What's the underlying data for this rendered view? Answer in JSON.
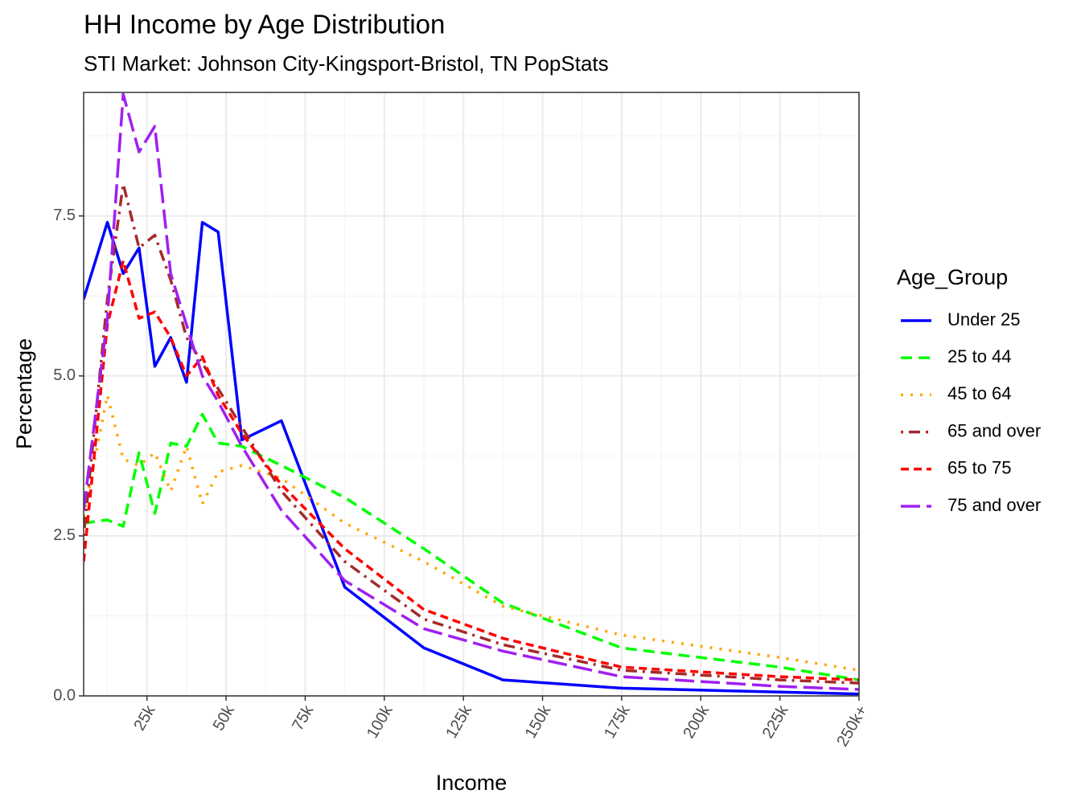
{
  "chart_data": {
    "type": "line",
    "title": "HH Income by Age Distribution",
    "subtitle": "STI Market: Johnson City-Kingsport-Bristol, TN PopStats",
    "x_label": "Income",
    "y_label": "Percentage",
    "legend_title": "Age_Group",
    "x": [
      5,
      12.5,
      17.5,
      22.5,
      27.5,
      32.5,
      37.5,
      42.5,
      47.5,
      55,
      67.5,
      87.5,
      112.5,
      137.5,
      175,
      225,
      250
    ],
    "series": [
      {
        "name": "Under 25",
        "color": "#0000ff",
        "linetype": "solid",
        "values": [
          6.2,
          7.4,
          6.6,
          7.0,
          5.15,
          5.6,
          4.9,
          7.4,
          7.25,
          4.0,
          4.3,
          1.7,
          0.75,
          0.25,
          0.12,
          0.06,
          0.03
        ]
      },
      {
        "name": "25 to 44",
        "color": "#00ff00",
        "linetype": "dashed",
        "values": [
          2.7,
          2.75,
          2.65,
          3.8,
          2.85,
          3.95,
          3.9,
          4.4,
          3.95,
          3.9,
          3.6,
          3.1,
          2.3,
          1.45,
          0.75,
          0.45,
          0.25
        ]
      },
      {
        "name": "45 to 64",
        "color": "#ffa500",
        "linetype": "dotted",
        "values": [
          2.8,
          4.7,
          3.7,
          3.6,
          3.8,
          3.2,
          3.9,
          3.0,
          3.5,
          3.6,
          3.4,
          2.7,
          2.1,
          1.4,
          0.95,
          0.6,
          0.4
        ]
      },
      {
        "name": "65 and over",
        "color": "#a52a2a",
        "linetype": "dotdash",
        "values": [
          2.5,
          6.2,
          8.0,
          7.0,
          7.2,
          6.5,
          5.6,
          5.2,
          4.8,
          4.2,
          3.2,
          2.1,
          1.2,
          0.8,
          0.4,
          0.25,
          0.2
        ]
      },
      {
        "name": "65 to 75",
        "color": "#ff0000",
        "linetype": "shortdash",
        "values": [
          2.1,
          5.8,
          6.8,
          5.9,
          6.0,
          5.6,
          5.0,
          5.3,
          4.7,
          4.1,
          3.3,
          2.3,
          1.35,
          0.9,
          0.45,
          0.3,
          0.25
        ]
      },
      {
        "name": "75 and over",
        "color": "#a020f0",
        "linetype": "longdash",
        "values": [
          2.9,
          5.9,
          9.4,
          8.5,
          8.9,
          6.6,
          5.8,
          5.0,
          4.6,
          3.9,
          2.9,
          1.8,
          1.05,
          0.7,
          0.3,
          0.15,
          0.1
        ]
      }
    ],
    "xlim": [
      5,
      250
    ],
    "xticks": [
      {
        "value": 25,
        "label": "25k"
      },
      {
        "value": 50,
        "label": "50k"
      },
      {
        "value": 75,
        "label": "75k"
      },
      {
        "value": 100,
        "label": "100k"
      },
      {
        "value": 125,
        "label": "125k"
      },
      {
        "value": 150,
        "label": "150k"
      },
      {
        "value": 175,
        "label": "175k"
      },
      {
        "value": 200,
        "label": "200k"
      },
      {
        "value": 225,
        "label": "225k"
      },
      {
        "value": 250,
        "label": "250k+"
      }
    ],
    "ylim": [
      0,
      9.43
    ],
    "yticks": [
      {
        "value": 0,
        "label": "0.0"
      },
      2.5,
      {
        "value": 5,
        "label": "5.0"
      },
      7.5
    ],
    "grid": true,
    "legend_position": "right"
  }
}
